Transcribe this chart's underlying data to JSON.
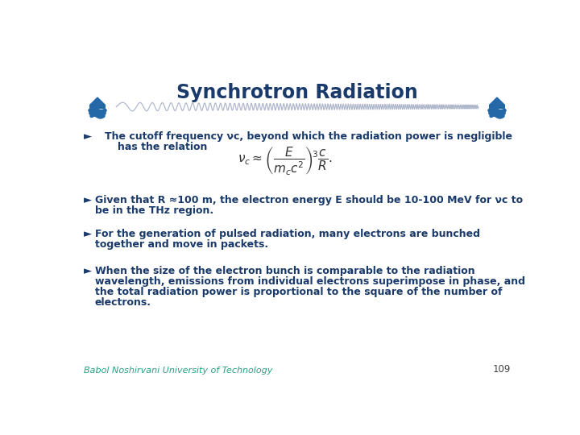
{
  "title": "Synchrotron Radiation",
  "title_color": "#1a3a6b",
  "title_fontsize": 17,
  "bg_color": "#ffffff",
  "bullet_color": "#1a3a6b",
  "footer_text": "Babol Noshirvani University of Technology",
  "footer_color": "#2aa080",
  "page_number": "109",
  "wave_color": "#b0b8cc",
  "icon_color": "#2468a8",
  "formula_color": "#333333",
  "fs_body": 9.0
}
